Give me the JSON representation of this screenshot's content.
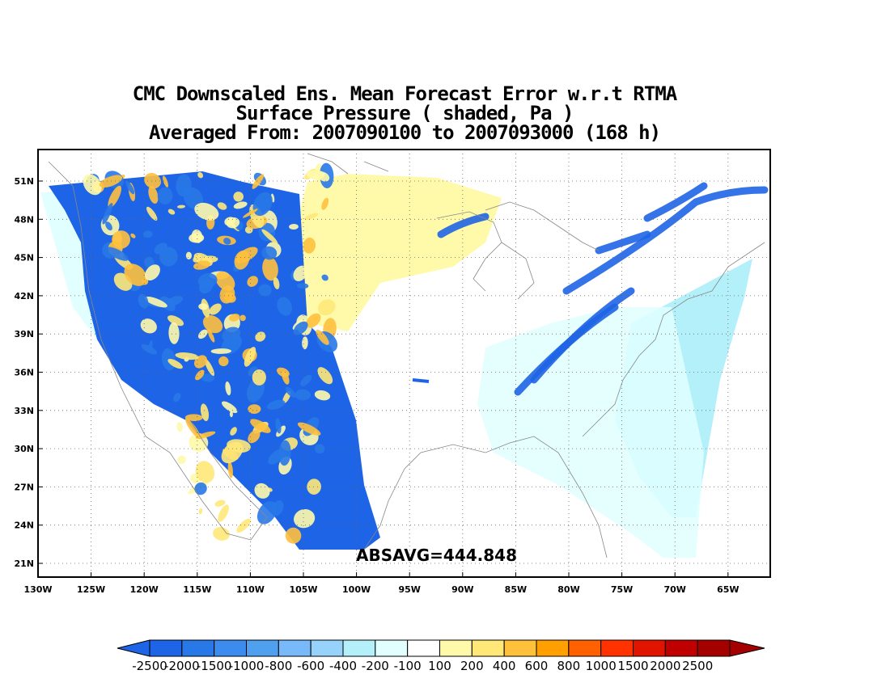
{
  "title": {
    "line1": "CMC Downscaled Ens. Mean Forecast Error w.r.t RTMA",
    "line2": "Surface Pressure ( shaded, Pa )",
    "line3": "Averaged From: 2007090100 to 2007093000 (168 h)"
  },
  "map": {
    "lon_range": [
      -130,
      -61
    ],
    "lat_range": [
      20,
      52
    ],
    "lon_ticks": [
      {
        "value": -130,
        "label": "130W"
      },
      {
        "value": -125,
        "label": "125W"
      },
      {
        "value": -120,
        "label": "120W"
      },
      {
        "value": -115,
        "label": "115W"
      },
      {
        "value": -110,
        "label": "110W"
      },
      {
        "value": -105,
        "label": "105W"
      },
      {
        "value": -100,
        "label": "100W"
      },
      {
        "value": -95,
        "label": "95W"
      },
      {
        "value": -90,
        "label": "90W"
      },
      {
        "value": -85,
        "label": "85W"
      },
      {
        "value": -80,
        "label": "80W"
      },
      {
        "value": -75,
        "label": "75W"
      },
      {
        "value": -70,
        "label": "70W"
      },
      {
        "value": -65,
        "label": "65W"
      }
    ],
    "lat_ticks": [
      {
        "value": 21,
        "label": "21N"
      },
      {
        "value": 24,
        "label": "24N"
      },
      {
        "value": 27,
        "label": "27N"
      },
      {
        "value": 30,
        "label": "30N"
      },
      {
        "value": 33,
        "label": "33N"
      },
      {
        "value": 36,
        "label": "36N"
      },
      {
        "value": 39,
        "label": "39N"
      },
      {
        "value": 42,
        "label": "42N"
      },
      {
        "value": 45,
        "label": "45N"
      },
      {
        "value": 48,
        "label": "48N"
      },
      {
        "value": 51,
        "label": "51N"
      }
    ],
    "grid": "dotted",
    "annotation": "ABSAVG=444.848"
  },
  "colorbar": {
    "labels": [
      "-2500",
      "-2000",
      "-1500",
      "-1000",
      "-800",
      "-600",
      "-400",
      "-200",
      "-100",
      "100",
      "200",
      "400",
      "600",
      "800",
      "1000",
      "1500",
      "2000",
      "2500"
    ],
    "colors": [
      "#1e64e6",
      "#2878e8",
      "#3c8cf0",
      "#50a0f0",
      "#78b9fa",
      "#96d2fa",
      "#b4f0fa",
      "#e1ffff",
      "#ffffff",
      "#fffaaa",
      "#ffe878",
      "#ffc03c",
      "#ffa000",
      "#ff6000",
      "#ff3200",
      "#e11400",
      "#c00000",
      "#a50000"
    ],
    "extend": "both"
  },
  "regions": {
    "west_land_color": "#1e64e6",
    "west_mixed_colors": [
      "#2878e8",
      "#fffaaa",
      "#ffe878",
      "#ffc03c"
    ],
    "plains_color": "#fffaaa",
    "east_light_color": "#e1ffff",
    "atlantic_color": "#b4f0fa",
    "pacific_color": "#e1ffff"
  }
}
